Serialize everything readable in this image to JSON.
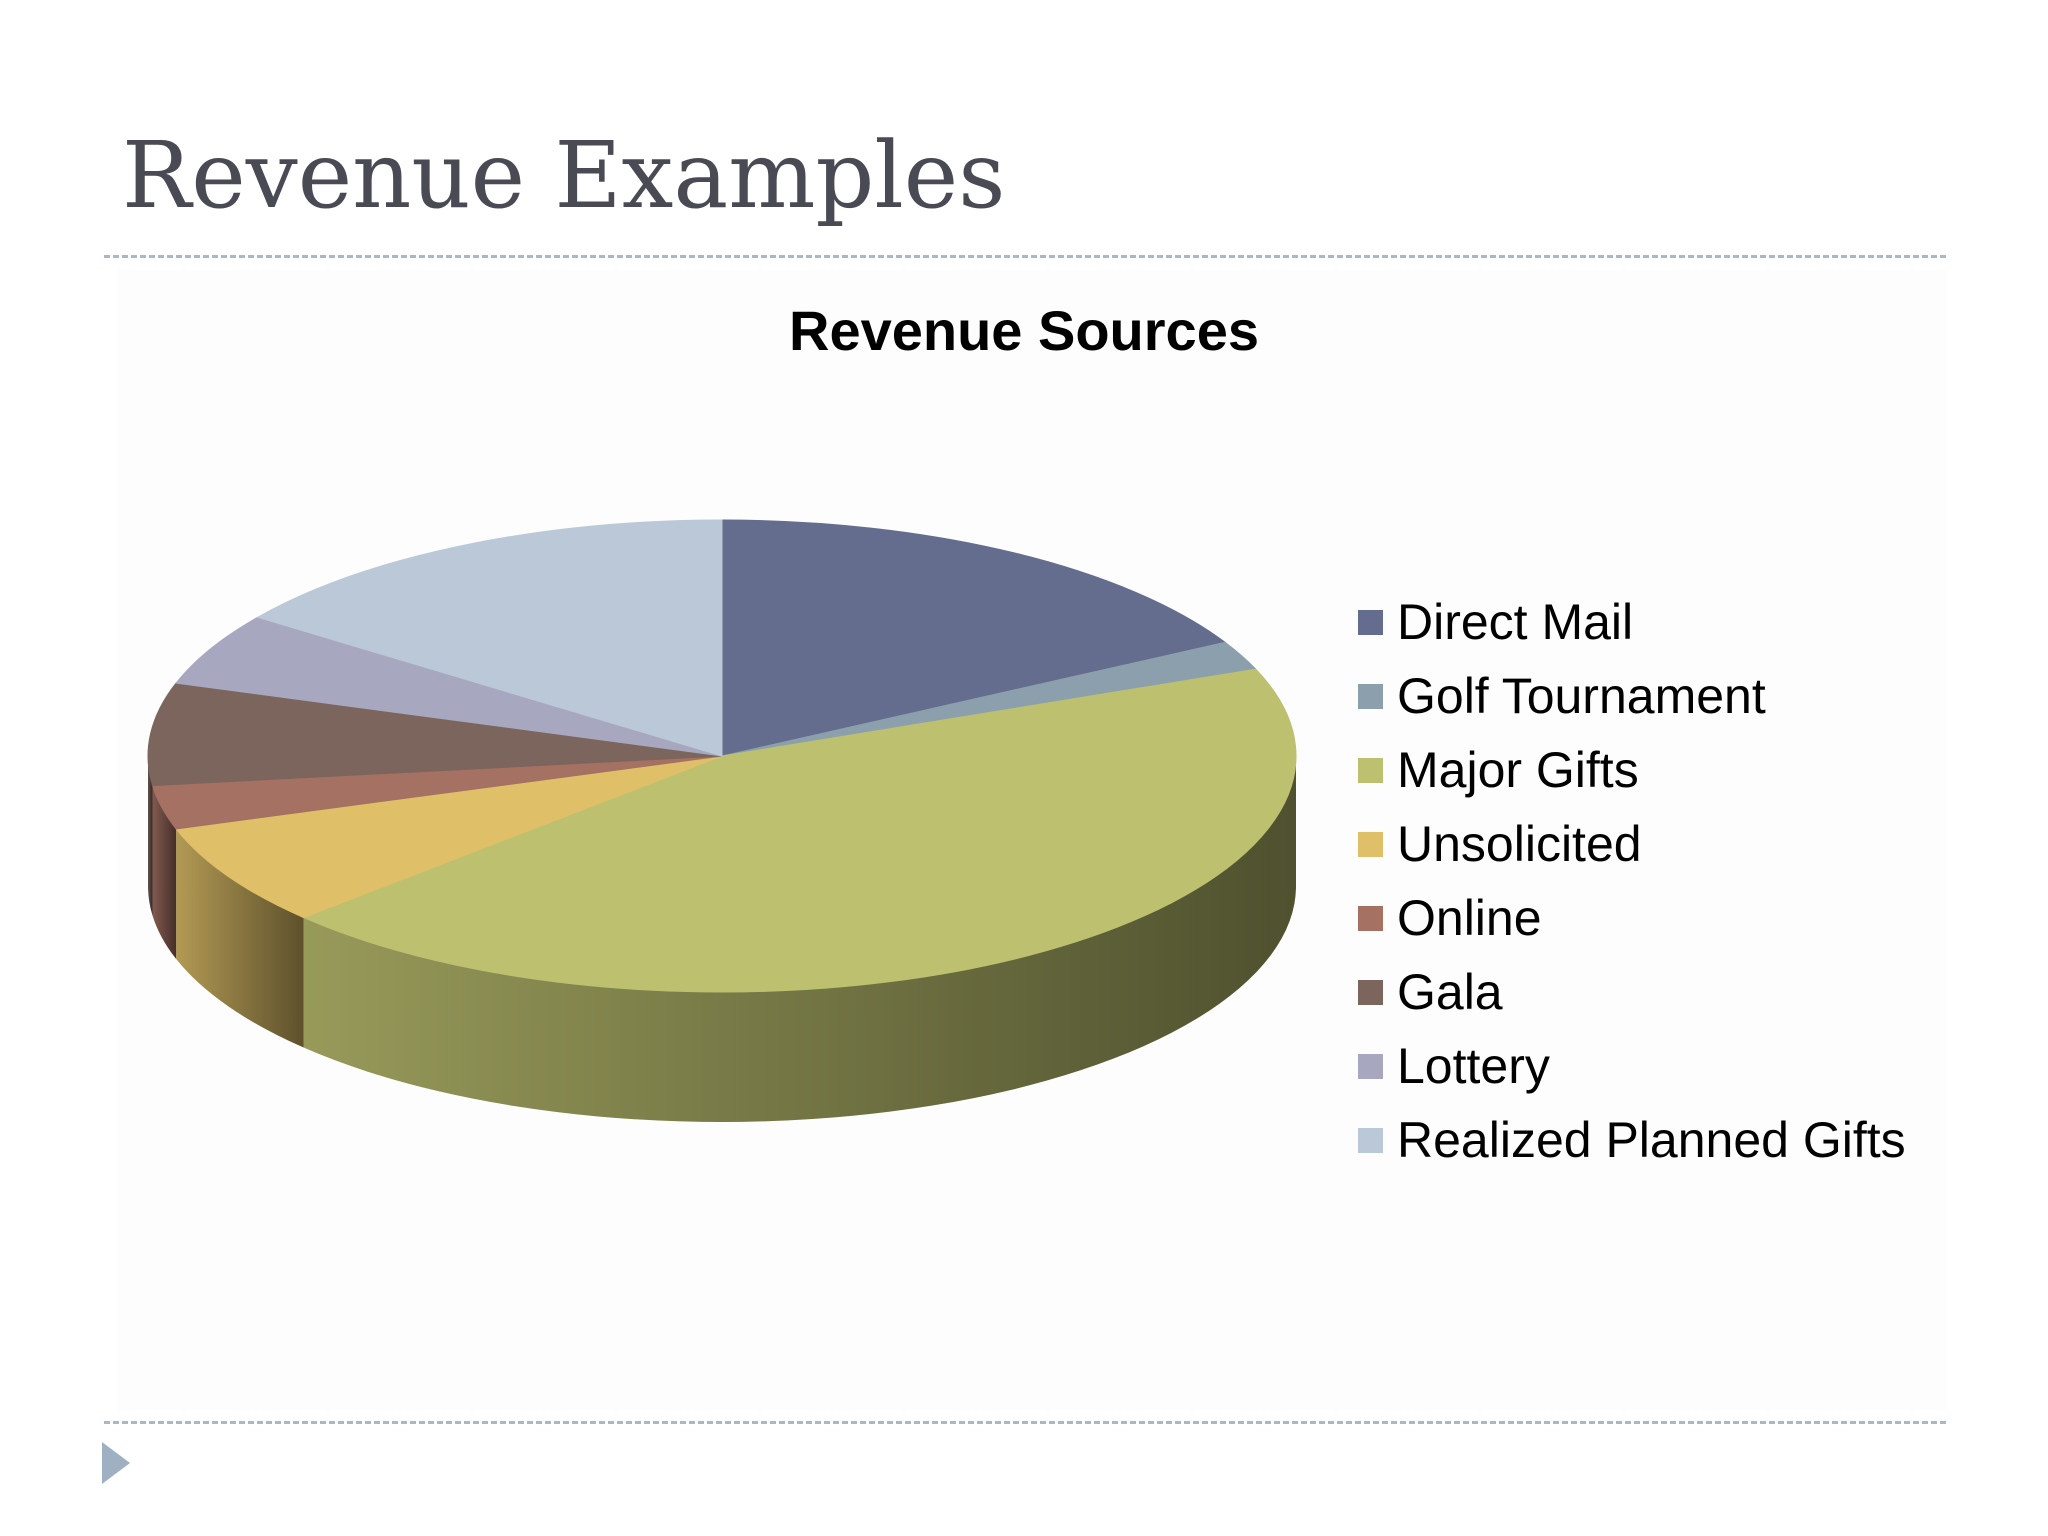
{
  "slide": {
    "title": "Revenue Examples"
  },
  "chart_data": {
    "type": "pie",
    "title": "Revenue Sources",
    "legend_position": "right",
    "slices": [
      {
        "label": "Direct Mail",
        "value": 17,
        "color": "#646d8d"
      },
      {
        "label": "Golf Tournament",
        "value": 2,
        "color": "#8c9fad"
      },
      {
        "label": "Major Gifts",
        "value": 44,
        "color": "#bdc06f"
      },
      {
        "label": "Unsolicited",
        "value": 7,
        "color": "#dfc069"
      },
      {
        "label": "Online",
        "value": 3,
        "color": "#a47163"
      },
      {
        "label": "Gala",
        "value": 7,
        "color": "#7c655c"
      },
      {
        "label": "Lottery",
        "value": 5,
        "color": "#a7a8c0"
      },
      {
        "label": "Realized Planned Gifts",
        "value": 15,
        "color": "#bbc8d8"
      }
    ]
  },
  "icons": {
    "next": "play-triangle-icon"
  }
}
